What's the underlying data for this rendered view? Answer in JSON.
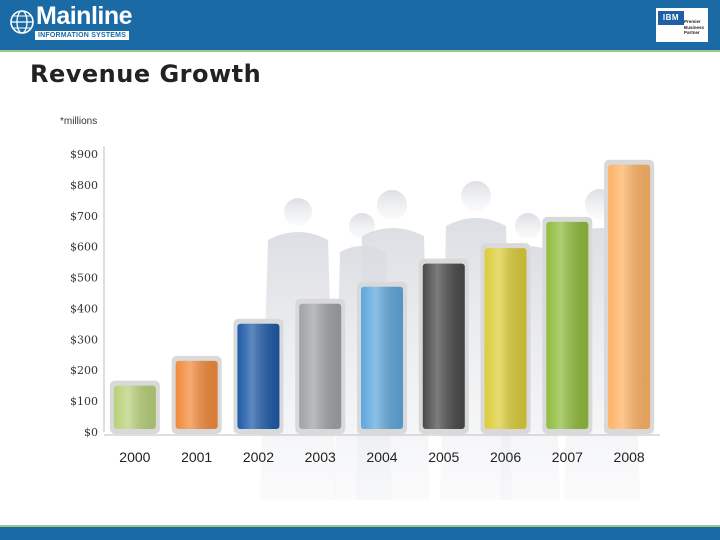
{
  "header": {
    "brand_name": "Mainline",
    "brand_sub": "INFORMATION SYSTEMS",
    "partner_ibm": "IBM",
    "partner_lines": [
      "Premier",
      "Business",
      "Partner"
    ]
  },
  "slide": {
    "title": "Revenue Growth"
  },
  "chart_data": {
    "type": "bar",
    "unit_note": "*millions",
    "categories": [
      "2000",
      "2001",
      "2002",
      "2003",
      "2004",
      "2005",
      "2006",
      "2007",
      "2008"
    ],
    "values": [
      160,
      240,
      360,
      425,
      480,
      555,
      605,
      690,
      875
    ],
    "colors": [
      "#b8d17a",
      "#f28a3a",
      "#1e5aa8",
      "#9fa3a6",
      "#5fa7dd",
      "#4a4a4a",
      "#dccd3a",
      "#8fbc3c",
      "#ffb266"
    ],
    "yticks": [
      "$900",
      "$800",
      "$700",
      "$600",
      "$500",
      "$400",
      "$300",
      "$200",
      "$100",
      "$0"
    ],
    "ylim": [
      0,
      900
    ],
    "title": "",
    "xlabel": "",
    "ylabel": "",
    "grid": false,
    "legend": false
  }
}
